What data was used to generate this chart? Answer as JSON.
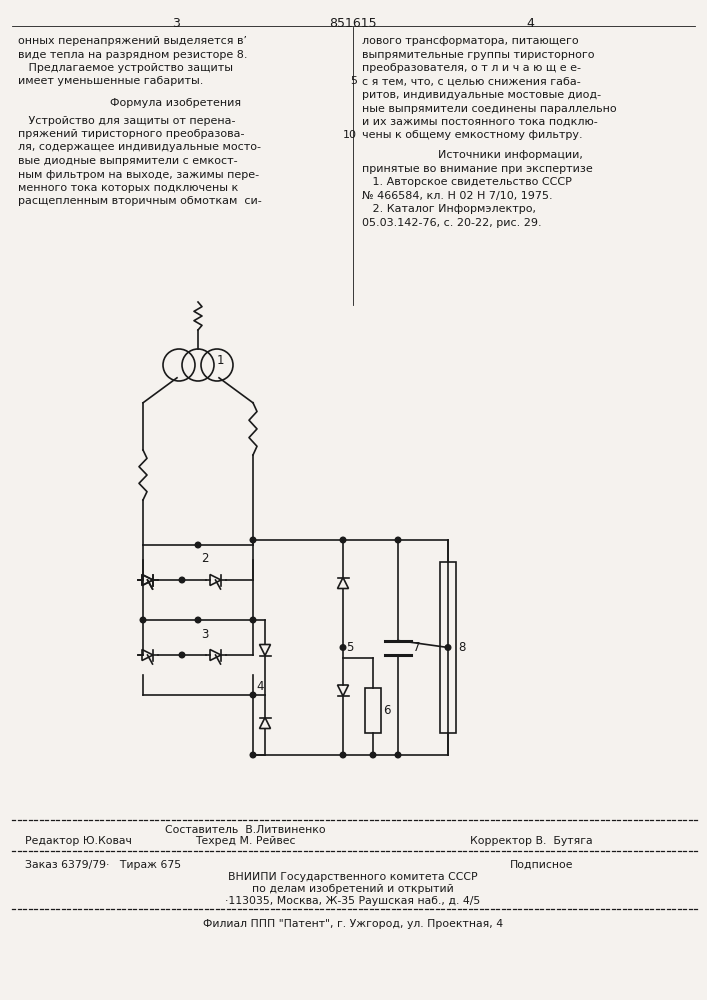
{
  "bg_color": "#f5f2ee",
  "text_color": "#1a1a1a",
  "header_num_left": "3",
  "header_patent": "851615",
  "header_num_right": "4",
  "col1_lines": [
    "онных перенапряжений выделяется в’",
    "виде тепла на разрядном резисторе 8.",
    "   Предлагаемое устройство защиты",
    "имеет уменьшенные габариты."
  ],
  "formula_title": "Формула изобретения",
  "formula_lines": [
    "   Устройство для защиты от перена-",
    "пряжений тиристорного преобразова-",
    "ля, содержащее индивидуальные мосто-",
    "вые диодные выпрямители с емкост-",
    "ным фильтром на выходе, зажимы пере-",
    "менного тока которых подключены к",
    "расщепленным вторичным обмоткам  си-"
  ],
  "col2_lines_top": [
    "лового трансформатора, питающего",
    "выпрямительные группы тиристорного",
    "преобразователя, о т л и ч а ю щ е е-",
    "с я тем, что, с целью снижения габа-",
    "ритов, индивидуальные мостовые диод-",
    "ные выпрямители соединены параллельно",
    "и их зажимы постоянного тока подклю-",
    "чены к общему емкостному фильтру."
  ],
  "sources_title": "Источники информации,",
  "sources_lines": [
    "принятые во внимание при экспертизе",
    "   1. Авторское свидетельство СССР",
    "№ 466584, кл. Н 02 Н 7/10, 1975.",
    "   2. Каталог Информэлектро,",
    "05.03.142-76, с. 20-22, рис. 29."
  ],
  "footer_composer": "Составитель  В.Литвиненко",
  "footer_editor": "Редактор Ю.Ковач",
  "footer_techred": "Техред М. Рейвес",
  "footer_corrector": "Корректор В.  Бутяга",
  "footer_order": "Заказ 6379/79·   Тираж 675",
  "footer_signed": "Подписное",
  "footer_org1": "ВНИИПИ Государственного комитета СССР",
  "footer_org2": "по делам изобретений и открытий",
  "footer_org3": "·113035, Москва, Ж-35 Раушская наб., д. 4/5",
  "footer_branch": "Филиал ППП \"Патент\", г. Ужгород, ул. Проектная, 4"
}
